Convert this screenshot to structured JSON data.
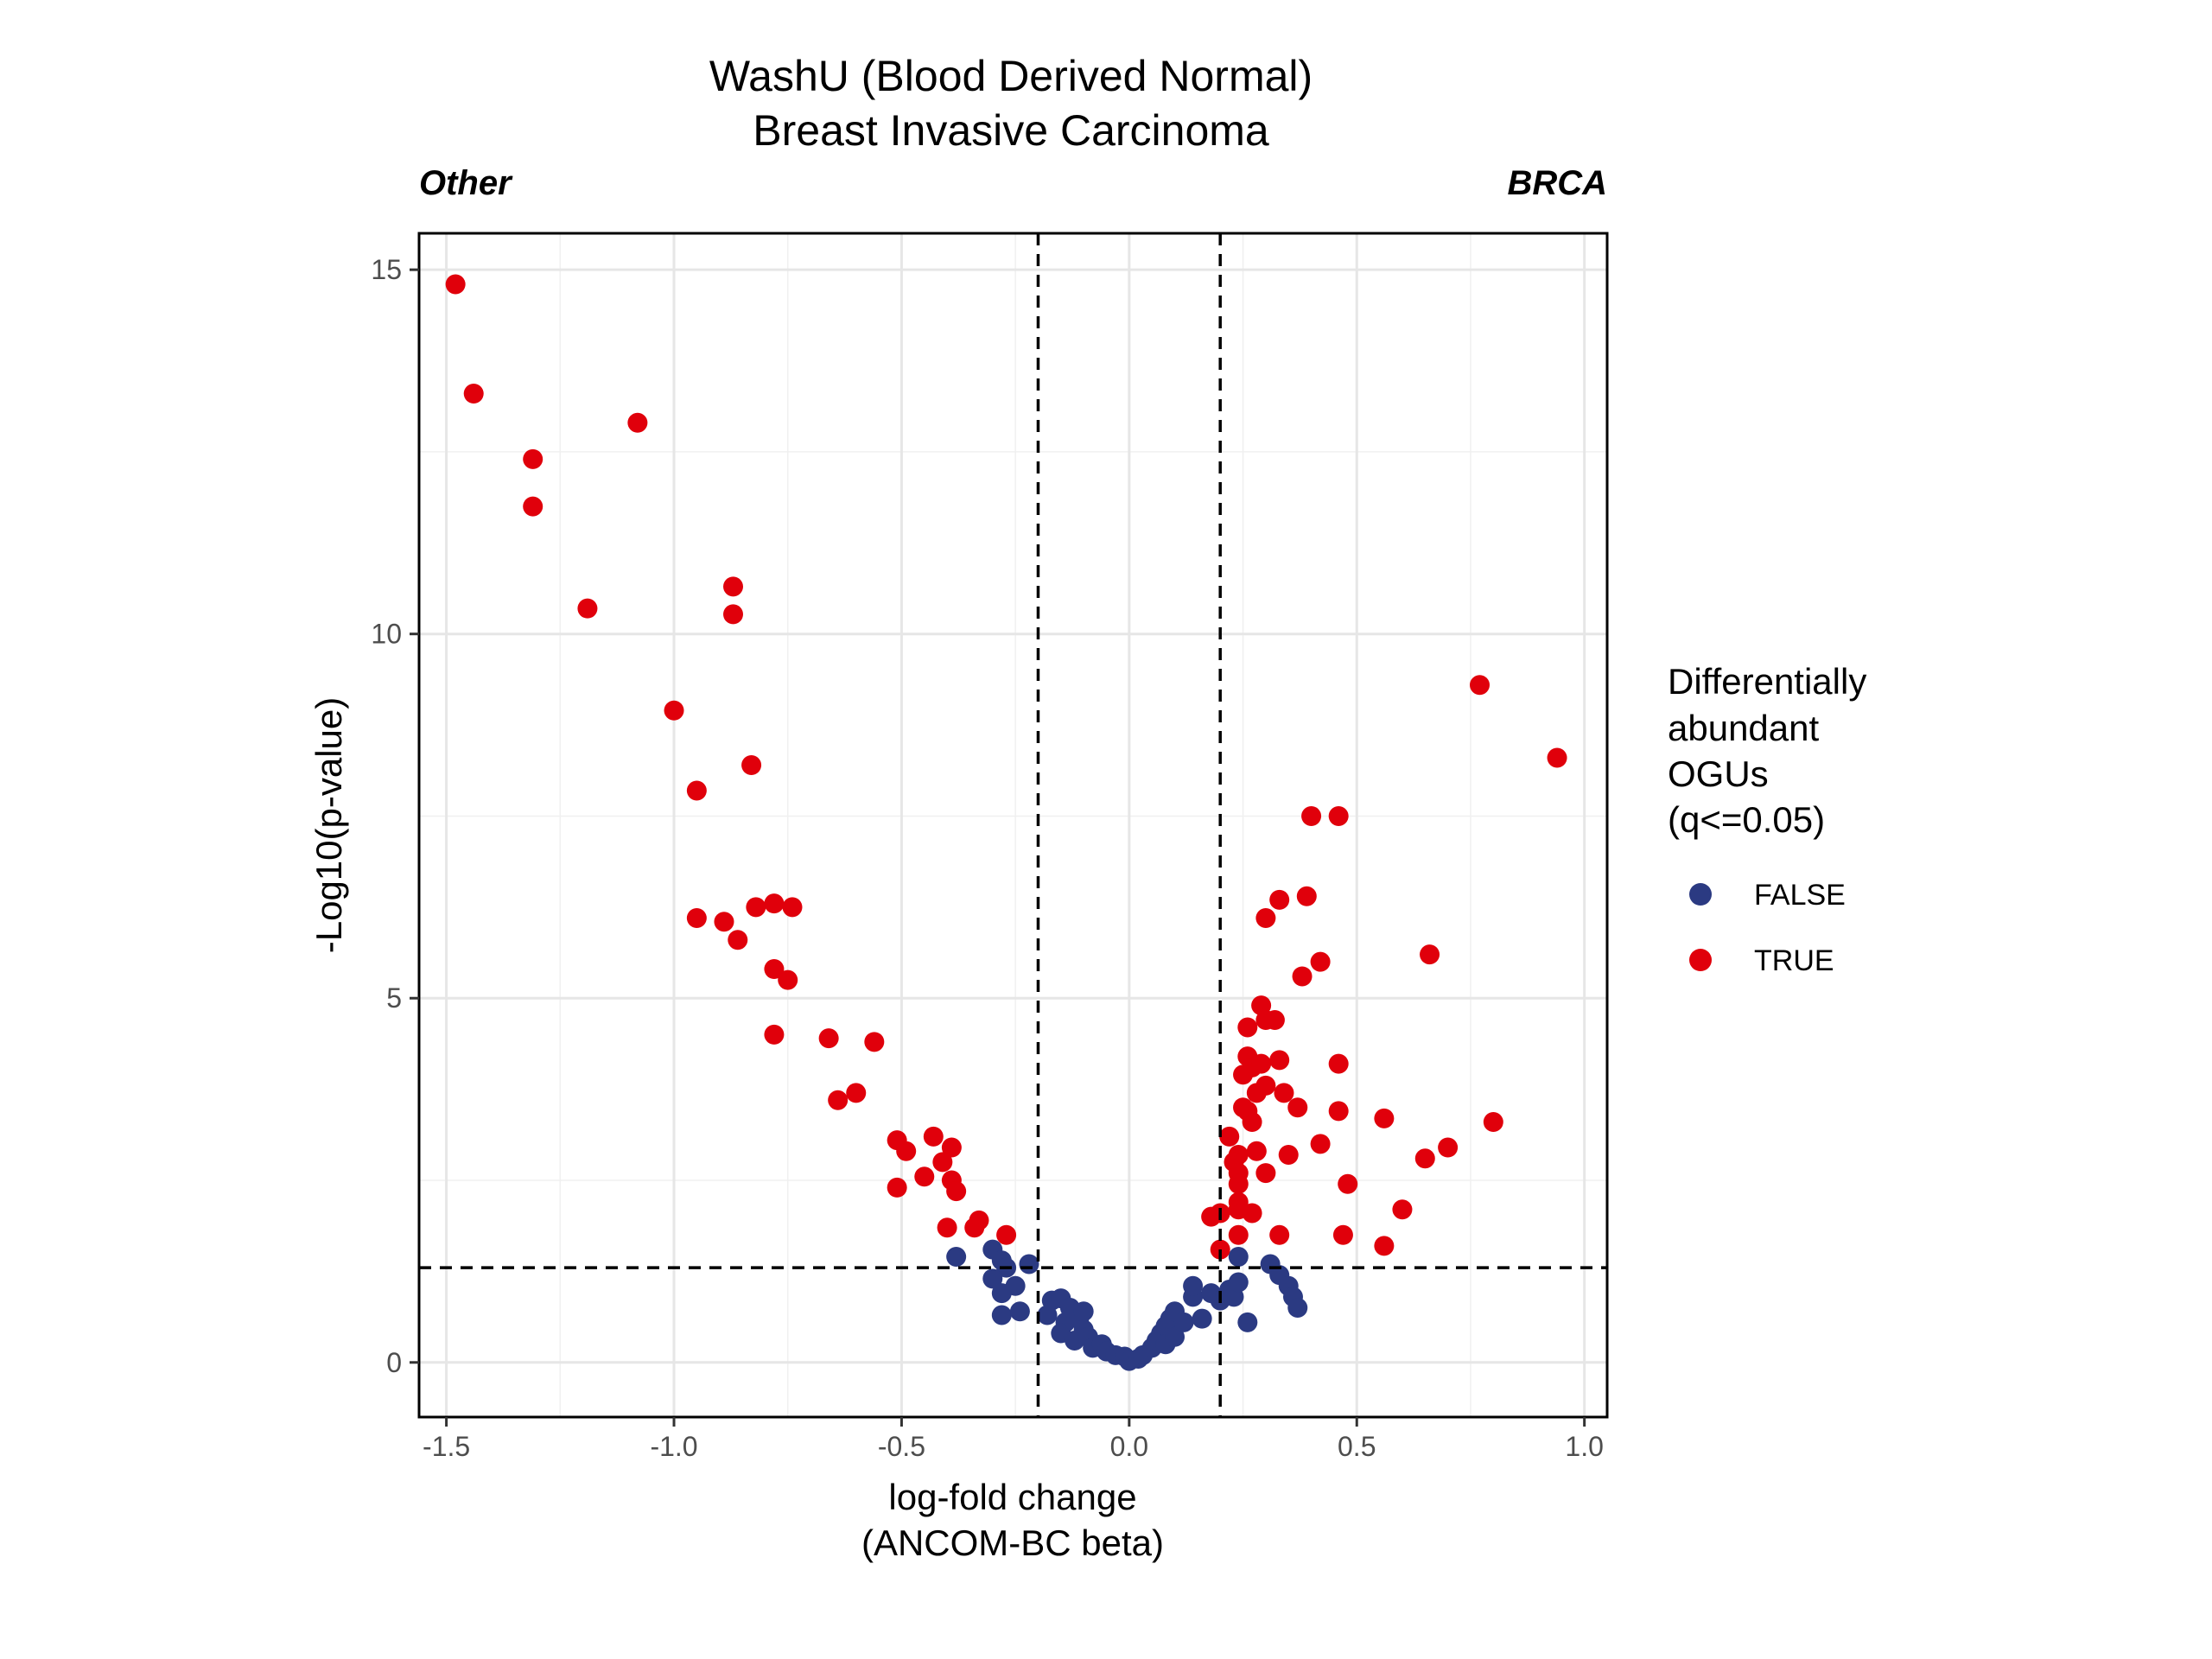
{
  "chart_data": {
    "type": "scatter",
    "title": "WashU (Blood Derived Normal)",
    "subtitle": "Breast Invasive Carcinoma",
    "left_label": "Other",
    "right_label": "BRCA",
    "xlabel_line1": "log-fold change",
    "xlabel_line2": "(ANCOM-BC beta)",
    "ylabel": "-Log10(p-value)",
    "xlim": [
      -1.56,
      1.05
    ],
    "ylim": [
      -0.75,
      15.5
    ],
    "x_ticks": [
      -1.5,
      -1.0,
      -0.5,
      0.0,
      0.5,
      1.0
    ],
    "x_tick_labels": [
      "-1.5",
      "-1.0",
      "-0.5",
      "0.0",
      "0.5",
      "1.0"
    ],
    "y_ticks": [
      0,
      5,
      10,
      15
    ],
    "y_tick_labels": [
      "0",
      "5",
      "10",
      "15"
    ],
    "grid": true,
    "vlines": [
      -0.2,
      0.2
    ],
    "hline": 1.3,
    "legend": {
      "title_lines": [
        "Differentially",
        "abundant",
        "OGUs",
        "(q<=0.05)"
      ],
      "placement": "right"
    },
    "series": [
      {
        "name": "FALSE",
        "color": "#2b3a82",
        "points": [
          [
            -0.38,
            1.45
          ],
          [
            -0.3,
            1.55
          ],
          [
            -0.28,
            1.4
          ],
          [
            -0.27,
            1.3
          ],
          [
            -0.22,
            1.35
          ],
          [
            -0.25,
            1.05
          ],
          [
            -0.3,
            1.15
          ],
          [
            -0.28,
            0.95
          ],
          [
            -0.28,
            0.65
          ],
          [
            -0.24,
            0.7
          ],
          [
            -0.18,
            0.65
          ],
          [
            -0.17,
            0.85
          ],
          [
            -0.15,
            0.88
          ],
          [
            -0.14,
            0.55
          ],
          [
            -0.15,
            0.4
          ],
          [
            -0.13,
            0.75
          ],
          [
            -0.11,
            0.6
          ],
          [
            -0.1,
            0.7
          ],
          [
            -0.12,
            0.3
          ],
          [
            -0.1,
            0.45
          ],
          [
            -0.09,
            0.35
          ],
          [
            -0.08,
            0.2
          ],
          [
            -0.06,
            0.25
          ],
          [
            -0.05,
            0.15
          ],
          [
            -0.03,
            0.1
          ],
          [
            -0.01,
            0.08
          ],
          [
            0.0,
            0.02
          ],
          [
            0.02,
            0.05
          ],
          [
            0.03,
            0.1
          ],
          [
            0.05,
            0.2
          ],
          [
            0.06,
            0.3
          ],
          [
            0.07,
            0.4
          ],
          [
            0.08,
            0.5
          ],
          [
            0.09,
            0.6
          ],
          [
            0.1,
            0.7
          ],
          [
            0.08,
            0.25
          ],
          [
            0.1,
            0.35
          ],
          [
            0.12,
            0.55
          ],
          [
            0.14,
            0.9
          ],
          [
            0.14,
            1.05
          ],
          [
            0.16,
            0.6
          ],
          [
            0.18,
            0.95
          ],
          [
            0.2,
            0.85
          ],
          [
            0.22,
            1.0
          ],
          [
            0.23,
            0.9
          ],
          [
            0.24,
            1.1
          ],
          [
            0.24,
            1.45
          ],
          [
            0.26,
            0.55
          ],
          [
            0.31,
            1.35
          ],
          [
            0.33,
            1.2
          ],
          [
            0.35,
            1.05
          ],
          [
            0.36,
            0.9
          ],
          [
            0.37,
            0.75
          ]
        ]
      },
      {
        "name": "TRUE",
        "color": "#e0000b",
        "points": [
          [
            -1.48,
            14.8
          ],
          [
            -1.44,
            13.3
          ],
          [
            -1.31,
            12.4
          ],
          [
            -1.31,
            11.75
          ],
          [
            -1.08,
            12.9
          ],
          [
            -1.19,
            10.35
          ],
          [
            -0.87,
            10.65
          ],
          [
            -0.87,
            10.27
          ],
          [
            -1.0,
            8.95
          ],
          [
            -0.83,
            8.2
          ],
          [
            -0.95,
            7.85
          ],
          [
            -0.95,
            6.1
          ],
          [
            -0.89,
            6.05
          ],
          [
            -0.86,
            5.8
          ],
          [
            -0.82,
            6.25
          ],
          [
            -0.78,
            6.3
          ],
          [
            -0.74,
            6.25
          ],
          [
            -0.78,
            5.4
          ],
          [
            -0.75,
            5.25
          ],
          [
            -0.78,
            4.5
          ],
          [
            -0.66,
            4.45
          ],
          [
            -0.56,
            4.4
          ],
          [
            -0.64,
            3.6
          ],
          [
            -0.6,
            3.7
          ],
          [
            -0.51,
            3.05
          ],
          [
            -0.49,
            2.9
          ],
          [
            -0.43,
            3.1
          ],
          [
            -0.39,
            2.95
          ],
          [
            -0.41,
            2.75
          ],
          [
            -0.39,
            2.5
          ],
          [
            -0.38,
            2.35
          ],
          [
            -0.45,
            2.55
          ],
          [
            -0.51,
            2.4
          ],
          [
            -0.4,
            1.85
          ],
          [
            -0.33,
            1.95
          ],
          [
            -0.34,
            1.85
          ],
          [
            -0.27,
            1.75
          ],
          [
            0.77,
            9.3
          ],
          [
            0.94,
            8.3
          ],
          [
            0.4,
            7.5
          ],
          [
            0.46,
            7.5
          ],
          [
            0.33,
            6.35
          ],
          [
            0.39,
            6.4
          ],
          [
            0.3,
            6.1
          ],
          [
            0.66,
            5.6
          ],
          [
            0.42,
            5.5
          ],
          [
            0.38,
            5.3
          ],
          [
            0.29,
            4.9
          ],
          [
            0.32,
            4.7
          ],
          [
            0.26,
            4.6
          ],
          [
            0.3,
            4.7
          ],
          [
            0.26,
            4.2
          ],
          [
            0.27,
            4.05
          ],
          [
            0.25,
            3.95
          ],
          [
            0.29,
            4.1
          ],
          [
            0.33,
            4.15
          ],
          [
            0.28,
            3.7
          ],
          [
            0.3,
            3.8
          ],
          [
            0.34,
            3.7
          ],
          [
            0.37,
            3.5
          ],
          [
            0.26,
            3.45
          ],
          [
            0.27,
            3.3
          ],
          [
            0.25,
            3.5
          ],
          [
            0.46,
            4.1
          ],
          [
            0.46,
            3.45
          ],
          [
            0.56,
            3.35
          ],
          [
            0.8,
            3.3
          ],
          [
            0.22,
            3.1
          ],
          [
            0.24,
            2.85
          ],
          [
            0.23,
            2.75
          ],
          [
            0.28,
            2.9
          ],
          [
            0.35,
            2.85
          ],
          [
            0.42,
            3.0
          ],
          [
            0.3,
            2.6
          ],
          [
            0.24,
            2.6
          ],
          [
            0.24,
            2.45
          ],
          [
            0.24,
            2.2
          ],
          [
            0.24,
            2.1
          ],
          [
            0.2,
            2.05
          ],
          [
            0.18,
            2.0
          ],
          [
            0.27,
            2.05
          ],
          [
            0.48,
            2.45
          ],
          [
            0.6,
            2.1
          ],
          [
            0.65,
            2.8
          ],
          [
            0.7,
            2.95
          ],
          [
            0.24,
            1.75
          ],
          [
            0.33,
            1.75
          ],
          [
            0.47,
            1.75
          ],
          [
            0.56,
            1.6
          ],
          [
            0.2,
            1.55
          ]
        ]
      }
    ]
  }
}
